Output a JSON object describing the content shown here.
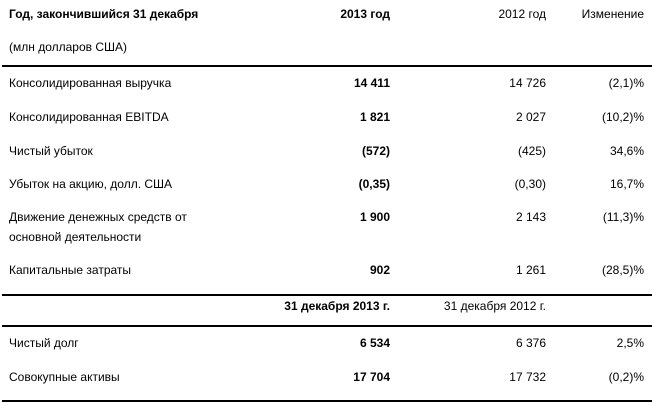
{
  "header": {
    "col_label": "Год, закончившийся 31 декабря",
    "units": "(млн долларов США)",
    "col_2013": "2013 год",
    "col_2012": "2012 год",
    "col_change": "Изменение"
  },
  "rows": [
    {
      "label": "Консолидированная выручка",
      "v2013": "14 411",
      "v2012": "14 726",
      "change": "(2,1)%"
    },
    {
      "label": "Консолидированная EBITDA",
      "v2013": "1 821",
      "v2012": "2 027",
      "change": "(10,2)%"
    },
    {
      "label": "Чистый убыток",
      "v2013": "(572)",
      "v2012": "(425)",
      "change": "34,6%"
    },
    {
      "label": "Убыток на акцию, долл. США",
      "v2013": "(0,35)",
      "v2012": "(0,30)",
      "change": "16,7%"
    },
    {
      "label": "Движение денежных средств от",
      "label_line2": "основной деятельности",
      "v2013": "1 900",
      "v2012": "2 143",
      "change": "(11,3)%"
    },
    {
      "label": "Капитальные затраты",
      "v2013": "902",
      "v2012": "1 261",
      "change": "(28,5)%"
    }
  ],
  "subheader": {
    "col_2013": "31 декабря 2013 г.",
    "col_2012": "31 декабря 2012 г."
  },
  "rows2": [
    {
      "label": "Чистый долг",
      "v2013": "6 534",
      "v2012": "6 376",
      "change": "2,5%"
    },
    {
      "label": "Совокупные активы",
      "v2013": "17 704",
      "v2012": "17 732",
      "change": "(0,2)%"
    }
  ]
}
